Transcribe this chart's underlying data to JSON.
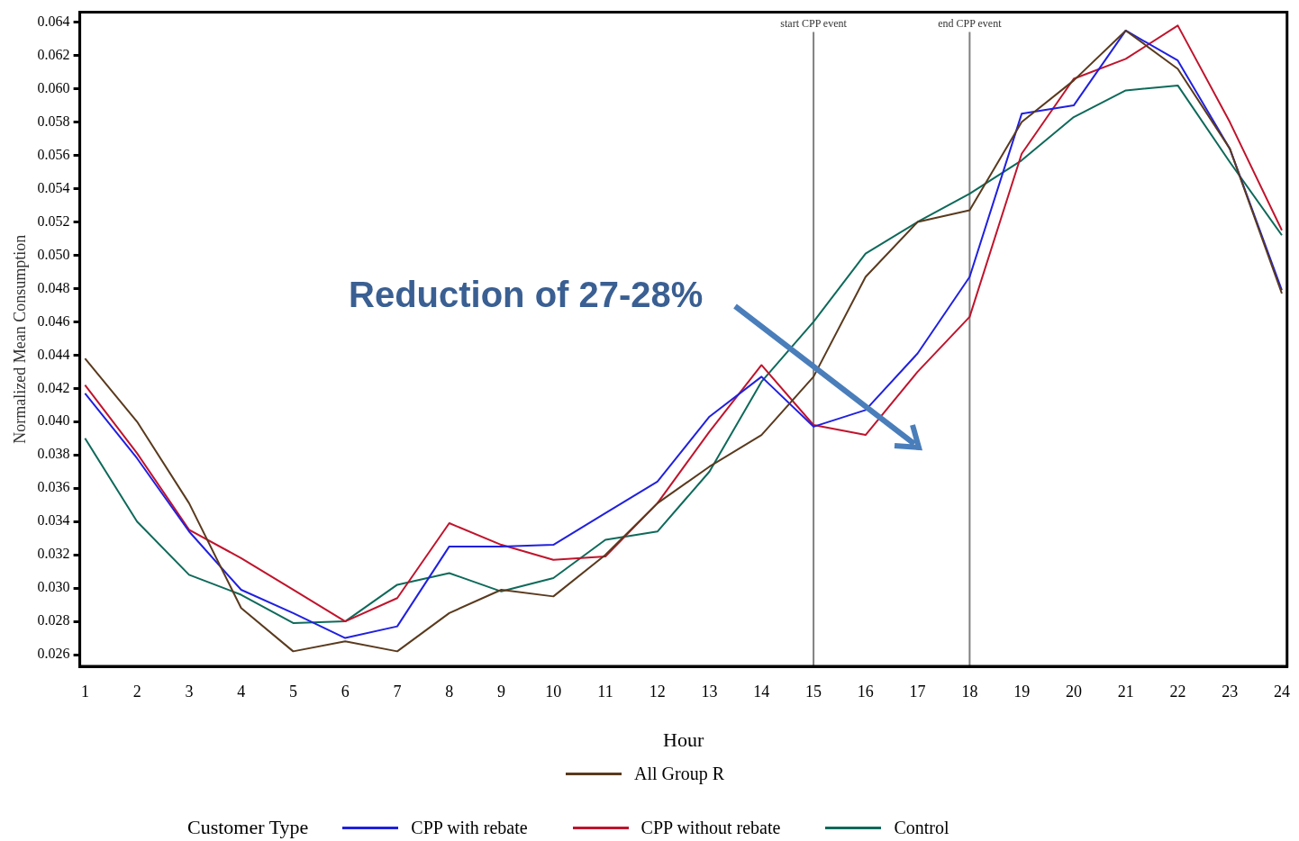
{
  "chart_data": {
    "type": "line",
    "xlabel": "Hour",
    "ylabel": "Normalized Mean Consumption",
    "legend_title": "Customer Type",
    "legend": "bottom",
    "grid": false,
    "marker": "none",
    "line_style": "solid",
    "x": [
      1,
      2,
      3,
      4,
      5,
      6,
      7,
      8,
      9,
      10,
      11,
      12,
      13,
      14,
      15,
      16,
      17,
      18,
      19,
      20,
      21,
      22,
      23,
      24
    ],
    "xlim": [
      0.9,
      24.1
    ],
    "xticks": [
      1,
      2,
      3,
      4,
      5,
      6,
      7,
      8,
      9,
      10,
      11,
      12,
      13,
      14,
      15,
      16,
      17,
      18,
      19,
      20,
      21,
      22,
      23,
      24
    ],
    "ylim": [
      0.0253,
      0.0646
    ],
    "yticks": [
      {
        "value": 0.026,
        "label": "0.026"
      },
      {
        "value": 0.028,
        "label": "0.028"
      },
      {
        "value": 0.03,
        "label": "0.030"
      },
      {
        "value": 0.032,
        "label": "0.032"
      },
      {
        "value": 0.034,
        "label": "0.034"
      },
      {
        "value": 0.036,
        "label": "0.036"
      },
      {
        "value": 0.038,
        "label": "0.038"
      },
      {
        "value": 0.04,
        "label": "0.040"
      },
      {
        "value": 0.042,
        "label": "0.042"
      },
      {
        "value": 0.044,
        "label": "0.044"
      },
      {
        "value": 0.046,
        "label": "0.046"
      },
      {
        "value": 0.048,
        "label": "0.048"
      },
      {
        "value": 0.05,
        "label": "0.050"
      },
      {
        "value": 0.052,
        "label": "0.052"
      },
      {
        "value": 0.054,
        "label": "0.054"
      },
      {
        "value": 0.056,
        "label": "0.056"
      },
      {
        "value": 0.058,
        "label": "0.058"
      },
      {
        "value": 0.06,
        "label": "0.060"
      },
      {
        "value": 0.062,
        "label": "0.062"
      },
      {
        "value": 0.064,
        "label": "0.064"
      }
    ],
    "series": [
      {
        "name": "All Group R",
        "color": "#5a3a1e",
        "values": [
          0.0438,
          0.04,
          0.0351,
          0.0288,
          0.0262,
          0.0268,
          0.0262,
          0.0285,
          0.0299,
          0.0295,
          0.032,
          0.0351,
          0.0373,
          0.0392,
          0.0427,
          0.0487,
          0.052,
          0.0527,
          0.058,
          0.0605,
          0.0635,
          0.0612,
          0.0564,
          0.0477
        ]
      },
      {
        "name": "CPP with rebate",
        "color": "#2020e0",
        "values": [
          0.0417,
          0.0378,
          0.0334,
          0.0299,
          0.0285,
          0.027,
          0.0277,
          0.0325,
          0.0325,
          0.0326,
          0.0345,
          0.0364,
          0.0403,
          0.0427,
          0.0397,
          0.0407,
          0.0441,
          0.0487,
          0.0585,
          0.059,
          0.0635,
          0.0617,
          0.0564,
          0.0479
        ]
      },
      {
        "name": "CPP without rebate",
        "color": "#c0142c",
        "values": [
          0.0422,
          0.0381,
          0.0335,
          0.0318,
          0.0299,
          0.028,
          0.0294,
          0.0339,
          0.0326,
          0.0317,
          0.0319,
          0.0351,
          0.0394,
          0.0434,
          0.0398,
          0.0392,
          0.043,
          0.0463,
          0.0561,
          0.0606,
          0.0618,
          0.0638,
          0.058,
          0.0515
        ]
      },
      {
        "name": "Control",
        "color": "#0e6a5a",
        "values": [
          0.039,
          0.034,
          0.0308,
          0.0296,
          0.0279,
          0.028,
          0.0302,
          0.0309,
          0.0298,
          0.0306,
          0.0329,
          0.0334,
          0.037,
          0.0424,
          0.046,
          0.0501,
          0.052,
          0.0537,
          0.0557,
          0.0583,
          0.0599,
          0.0602,
          0.0556,
          0.0512
        ]
      }
    ],
    "ref_lines": [
      {
        "axis": "x",
        "value": 15,
        "label": "start CPP event",
        "color": "#808080"
      },
      {
        "axis": "x",
        "value": 18,
        "label": "end CPP event",
        "color": "#808080"
      }
    ],
    "annotations": [
      "Reduction of 27-28%"
    ]
  }
}
